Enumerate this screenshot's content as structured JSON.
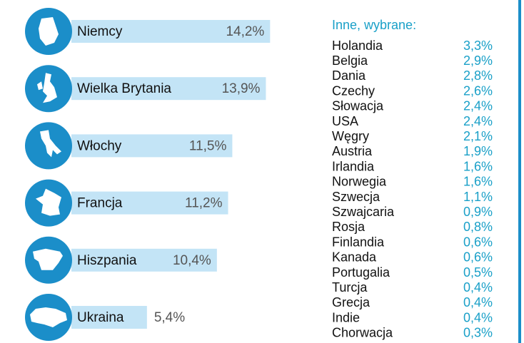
{
  "chart_data": {
    "type": "bar",
    "orientation": "horizontal",
    "categories": [
      "Niemcy",
      "Wielka Brytania",
      "Włochy",
      "Francja",
      "Hiszpania",
      "Ukraina"
    ],
    "values": [
      14.2,
      13.9,
      11.5,
      11.2,
      10.4,
      5.4
    ],
    "value_labels": [
      "14,2%",
      "13,9%",
      "11,5%",
      "11,2%",
      "10,4%",
      "5,4%"
    ],
    "color": "#c3e4f6"
  },
  "other": {
    "title": "Inne, wybrane:",
    "rows": [
      [
        "Holandia",
        "3,3%"
      ],
      [
        "Belgia",
        "2,9%"
      ],
      [
        "Dania",
        "2,8%"
      ],
      [
        "Czechy",
        "2,6%"
      ],
      [
        "Słowacja",
        "2,4%"
      ],
      [
        "USA",
        "2,4%"
      ],
      [
        "Węgry",
        "2,1%"
      ],
      [
        "Austria",
        "1,9%"
      ],
      [
        "Irlandia",
        "1,6%"
      ],
      [
        "Norwegia",
        "1,6%"
      ],
      [
        "Szwecja",
        "1,1%"
      ],
      [
        "Szwajcaria",
        "0,9%"
      ],
      [
        "Rosja",
        "0,8%"
      ],
      [
        "Finlandia",
        "0,6%"
      ],
      [
        "Kanada",
        "0,6%"
      ],
      [
        "Portugalia",
        "0,5%"
      ],
      [
        "Turcja",
        "0,4%"
      ],
      [
        "Grecja",
        "0,4%"
      ],
      [
        "Indie",
        "0,4%"
      ],
      [
        "Chorwacja",
        "0,3%"
      ]
    ]
  }
}
